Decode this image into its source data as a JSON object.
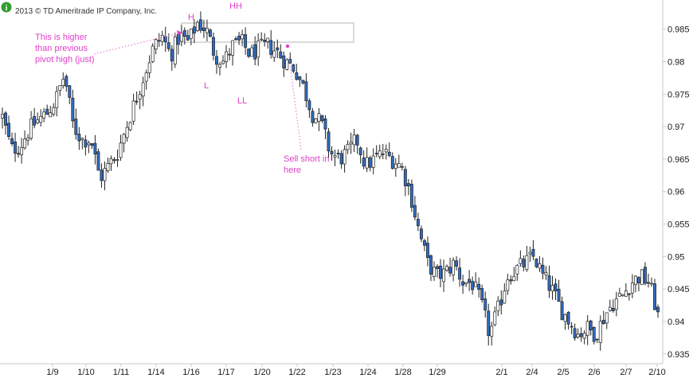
{
  "header": {
    "copyright": "2013 © TD Ameritrade IP Company, Inc.",
    "info_icon_glyph": "i",
    "info_icon_color": "#2e9e2e"
  },
  "colors": {
    "bull_fill": "#ffffff",
    "bear_fill": "#2f6cc4",
    "wick": "#222222",
    "annotation": "#e040c8",
    "box": "#b5b5b5",
    "axis": "#c8c8c8"
  },
  "chart_data": {
    "type": "candlestick",
    "instrument": "",
    "title": "",
    "xlabel": "",
    "ylabel": "",
    "ylim": [
      0.9335,
      0.9895
    ],
    "y_ticks": [
      "0.985",
      "0.98",
      "0.975",
      "0.97",
      "0.965",
      "0.96",
      "0.955",
      "0.95",
      "0.945",
      "0.94",
      "0.935"
    ],
    "x_ticks": [
      "1/9",
      "1/10",
      "1/11",
      "1/14",
      "1/16",
      "1/17",
      "1/20",
      "1/22",
      "1/23",
      "1/24",
      "1/28",
      "1/29",
      "2/1",
      "2/4",
      "2/5",
      "2/6",
      "2/7",
      "2/10"
    ],
    "ohlc_anchor_closes": [
      0.9715,
      0.9665,
      0.967,
      0.9695,
      0.971,
      0.972,
      0.974,
      0.978,
      0.97,
      0.968,
      0.968,
      0.962,
      0.964,
      0.966,
      0.97,
      0.974,
      0.978,
      0.982,
      0.984,
      0.981,
      0.984,
      0.983,
      0.986,
      0.985,
      0.981,
      0.98,
      0.9825,
      0.983,
      0.981,
      0.982,
      0.9825,
      0.9815,
      0.98,
      0.979,
      0.976,
      0.972,
      0.9705,
      0.966,
      0.965,
      0.966,
      0.968,
      0.964,
      0.965,
      0.966,
      0.965,
      0.964,
      0.96,
      0.954,
      0.949,
      0.947,
      0.9475,
      0.949,
      0.946,
      0.946,
      0.943,
      0.938,
      0.942,
      0.947,
      0.948,
      0.949,
      0.95,
      0.947,
      0.945,
      0.942,
      0.94,
      0.938,
      0.939,
      0.938,
      0.941,
      0.943,
      0.944,
      0.946,
      0.947,
      0.946,
      0.941
    ],
    "annotations": {
      "hh": "HH",
      "h": "H",
      "l": "L",
      "ll": "LL",
      "note_higher_line1": "This is higher",
      "note_higher_line2": "than previous",
      "note_higher_line3": "pivot high (just)",
      "note_sell_line1": "Sell short in",
      "note_sell_line2": "here"
    }
  }
}
